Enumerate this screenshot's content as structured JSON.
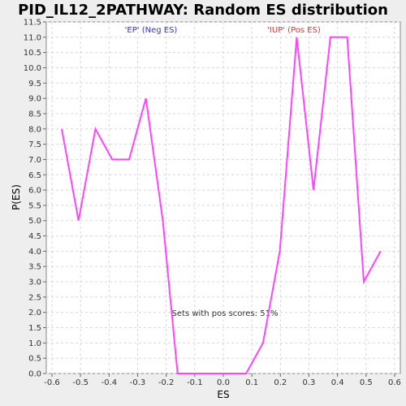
{
  "chart_data": {
    "type": "line",
    "title": "PID_IL12_2PATHWAY: Random ES distribution",
    "xlabel": "ES",
    "ylabel": "P(ES)",
    "xlim": [
      -0.62,
      0.62
    ],
    "ylim": [
      0,
      11.5
    ],
    "xticks": [
      "-0.6",
      "-0.5",
      "-0.4",
      "-0.3",
      "-0.2",
      "-0.1",
      "0.0",
      "0.1",
      "0.2",
      "0.3",
      "0.4",
      "0.5",
      "0.6"
    ],
    "xtick_values": [
      -0.6,
      -0.5,
      -0.4,
      -0.3,
      -0.2,
      -0.1,
      0.0,
      0.1,
      0.2,
      0.3,
      0.4,
      0.5,
      0.6
    ],
    "yticks": [
      "0.0",
      "0.5",
      "1.0",
      "1.5",
      "2.0",
      "2.5",
      "3.0",
      "3.5",
      "4.0",
      "4.5",
      "5.0",
      "5.5",
      "6.0",
      "6.5",
      "7.0",
      "7.5",
      "8.0",
      "8.5",
      "9.0",
      "9.5",
      "10.0",
      "10.5",
      "11.0",
      "11.5"
    ],
    "ytick_values": [
      0,
      0.5,
      1,
      1.5,
      2,
      2.5,
      3,
      3.5,
      4,
      4.5,
      5,
      5.5,
      6,
      6.5,
      7,
      7.5,
      8,
      8.5,
      9,
      9.5,
      10,
      10.5,
      11,
      11.5
    ],
    "grid": true,
    "line_color": "#ff44ff",
    "series": [
      {
        "x": [
          -0.566,
          -0.507,
          -0.448,
          -0.389,
          -0.33,
          -0.271,
          -0.212,
          -0.16,
          -0.1,
          -0.04,
          0.02,
          0.08,
          0.139,
          0.198,
          0.257,
          0.316,
          0.375,
          0.434,
          0.492,
          0.551
        ],
        "y": [
          8,
          5,
          8,
          7,
          7,
          9,
          5,
          0,
          0,
          0,
          0,
          0,
          1,
          4,
          11,
          6,
          11,
          11,
          3,
          4
        ]
      }
    ],
    "annotations": {
      "neg_label": "'EP' (Neg ES)",
      "neg_color": "#3333cc",
      "pos_label": "'IUP' (Pos ES)",
      "pos_color": "#dd3333",
      "summary": "Sets with pos scores: 51%",
      "summary_color": "#333333"
    }
  }
}
